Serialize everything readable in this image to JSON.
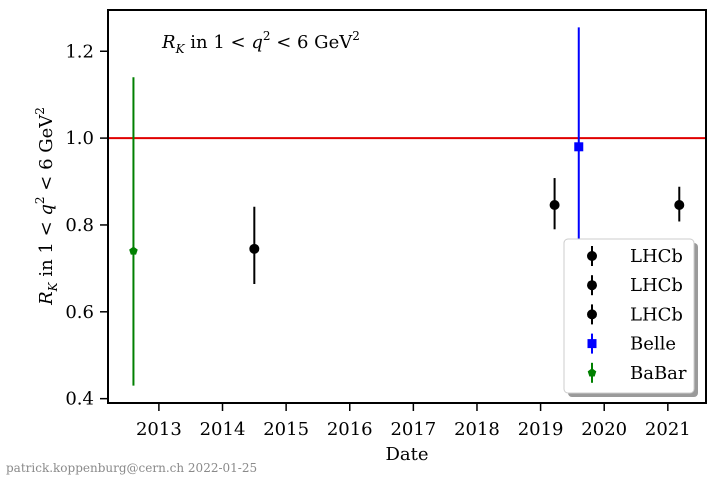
{
  "chart_data": {
    "type": "scatter",
    "title": "",
    "annotation": "R_K in 1 < q² < 6 GeV²",
    "xlabel": "Date",
    "ylabel": "R_K in 1 < q² < 6 GeV²",
    "xlim": [
      2012.2,
      2021.6
    ],
    "ylim": [
      0.39,
      1.295
    ],
    "xticks": [
      "2013",
      "2014",
      "2015",
      "2016",
      "2017",
      "2018",
      "2019",
      "2020",
      "2021"
    ],
    "yticks": [
      "0.4",
      "0.6",
      "0.8",
      "1.0",
      "1.2"
    ],
    "reference_line": {
      "y": 1.0,
      "color": "#e00000"
    },
    "series": [
      {
        "name": "LHCb",
        "marker": "circle",
        "color": "#000000",
        "points": [
          {
            "x": 2014.5,
            "y": 0.745,
            "ylow": 0.664,
            "yhigh": 0.842
          }
        ]
      },
      {
        "name": "LHCb",
        "marker": "circle",
        "color": "#000000",
        "points": [
          {
            "x": 2019.22,
            "y": 0.846,
            "ylow": 0.79,
            "yhigh": 0.908
          }
        ]
      },
      {
        "name": "LHCb",
        "marker": "circle",
        "color": "#000000",
        "points": [
          {
            "x": 2021.18,
            "y": 0.846,
            "ylow": 0.808,
            "yhigh": 0.888
          }
        ]
      },
      {
        "name": "Belle",
        "marker": "square",
        "color": "#0000ff",
        "points": [
          {
            "x": 2019.6,
            "y": 0.98,
            "ylow": 0.45,
            "yhigh": 1.255
          }
        ]
      },
      {
        "name": "BaBar",
        "marker": "pentagon",
        "color": "#008000",
        "points": [
          {
            "x": 2012.6,
            "y": 0.74,
            "ylow": 0.43,
            "yhigh": 1.14
          }
        ]
      }
    ],
    "legend_placement": "lower-right",
    "grid": false
  },
  "watermark": "patrick.koppenburg@cern.ch 2022-01-25"
}
